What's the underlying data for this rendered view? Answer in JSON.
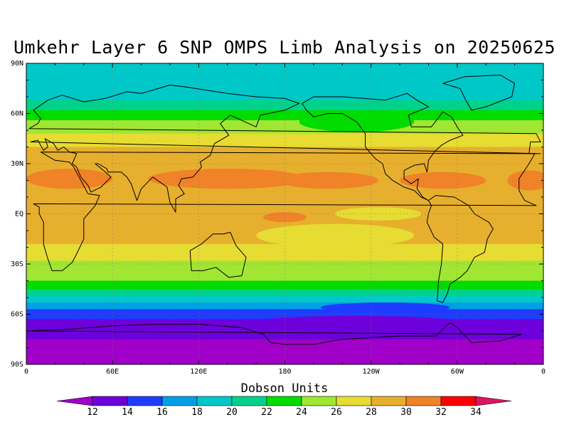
{
  "title": "Umkehr Layer 6 SNP OMPS Limb Analysis on 20250625",
  "colorbar": {
    "title": "Dobson Units",
    "labels": [
      "12",
      "14",
      "16",
      "18",
      "20",
      "22",
      "24",
      "26",
      "28",
      "30",
      "32",
      "34"
    ],
    "colors": [
      "#a000c8",
      "#6e00dc",
      "#1e3cff",
      "#00a0e6",
      "#00c8c8",
      "#00d28c",
      "#00dc00",
      "#a0e632",
      "#e6dc32",
      "#e6af2d",
      "#f08228",
      "#fa0000",
      "#dc1464"
    ]
  },
  "map": {
    "lat_labels": [
      "90N",
      "60N",
      "30N",
      "EQ",
      "30S",
      "60S",
      "90S"
    ],
    "lon_labels": [
      "0",
      "60E",
      "120E",
      "180",
      "120W",
      "60W",
      "0"
    ],
    "bands": [
      {
        "lat_top": 90,
        "color": "#00c8c8"
      },
      {
        "lat_top": 68,
        "color": "#00d28c"
      },
      {
        "lat_top": 62,
        "color": "#00dc00"
      },
      {
        "lat_top": 56,
        "color": "#a0e632"
      },
      {
        "lat_top": 48,
        "color": "#e6dc32"
      },
      {
        "lat_top": 40,
        "color": "#e6af2d"
      },
      {
        "lat_top": -18,
        "color": "#e6dc32"
      },
      {
        "lat_top": -28,
        "color": "#a0e632"
      },
      {
        "lat_top": -40,
        "color": "#00dc00"
      },
      {
        "lat_top": -45,
        "color": "#00d28c"
      },
      {
        "lat_top": -49,
        "color": "#00c8c8"
      },
      {
        "lat_top": -53,
        "color": "#00a0e6"
      },
      {
        "lat_top": -57,
        "color": "#1e3cff"
      },
      {
        "lat_top": -63,
        "color": "#6e00dc"
      },
      {
        "lat_top": -75,
        "color": "#a000c8"
      }
    ],
    "blobs": [
      {
        "name": "orange-band-west",
        "color": "#f08228",
        "lon": 30,
        "lat": 21,
        "rx": 30,
        "ry": 6
      },
      {
        "name": "orange-band-asia",
        "color": "#f08228",
        "lon": 140,
        "lat": 21,
        "rx": 55,
        "ry": 6
      },
      {
        "name": "orange-band-pacific",
        "color": "#f08228",
        "lon": 210,
        "lat": 20,
        "rx": 35,
        "ry": 5
      },
      {
        "name": "orange-band-atlantic",
        "color": "#f08228",
        "lon": 290,
        "lat": 20,
        "rx": 30,
        "ry": 5
      },
      {
        "name": "orange-band-east",
        "color": "#f08228",
        "lon": 350,
        "lat": 20,
        "rx": 15,
        "ry": 6
      },
      {
        "name": "orange-blob-coral-sea",
        "color": "#f08228",
        "lon": 180,
        "lat": -2,
        "rx": 15,
        "ry": 3
      },
      {
        "name": "yellow-blob-eq-pacific",
        "color": "#e6dc32",
        "lon": 245,
        "lat": 0,
        "rx": 30,
        "ry": 4
      },
      {
        "name": "yellow-blob-south-pacific",
        "color": "#e6dc32",
        "lon": 215,
        "lat": -13,
        "rx": 55,
        "ry": 7
      },
      {
        "name": "green-blob-north-pacific",
        "color": "#00dc00",
        "lon": 230,
        "lat": 55,
        "rx": 40,
        "ry": 6
      },
      {
        "name": "blue-tongue-south-pacific",
        "color": "#1e3cff",
        "lon": 250,
        "lat": -56,
        "rx": 45,
        "ry": 3
      },
      {
        "name": "purple-antarctic-bulge",
        "color": "#6e00dc",
        "lon": 230,
        "lat": -66,
        "rx": 80,
        "ry": 5
      }
    ],
    "coastlines": [
      {
        "name": "north-america-outline",
        "points": [
          [
            -168,
            66
          ],
          [
            -160,
            70
          ],
          [
            -140,
            70
          ],
          [
            -125,
            69
          ],
          [
            -110,
            68
          ],
          [
            -95,
            72
          ],
          [
            -88,
            68
          ],
          [
            -80,
            64
          ],
          [
            -94,
            59
          ],
          [
            -92,
            52
          ],
          [
            -78,
            52
          ],
          [
            -70,
            61
          ],
          [
            -64,
            58
          ],
          [
            -60,
            52
          ],
          [
            -56,
            47
          ],
          [
            -65,
            44
          ],
          [
            -71,
            41
          ],
          [
            -76,
            37
          ],
          [
            -80,
            32
          ],
          [
            -81,
            25
          ],
          [
            -83,
            30
          ],
          [
            -90,
            29
          ],
          [
            -97,
            26
          ],
          [
            -97,
            21
          ],
          [
            -92,
            18
          ],
          [
            -87,
            21
          ],
          [
            -88,
            15
          ],
          [
            -84,
            10
          ],
          [
            -80,
            8
          ],
          [
            -85,
            10
          ],
          [
            -90,
            14
          ],
          [
            -97,
            16
          ],
          [
            -105,
            20
          ],
          [
            -110,
            24
          ],
          [
            -112,
            30
          ],
          [
            -117,
            33
          ],
          [
            -124,
            40
          ],
          [
            -124,
            48
          ],
          [
            -130,
            55
          ],
          [
            -140,
            60
          ],
          [
            -150,
            60
          ],
          [
            -160,
            58
          ],
          [
            -165,
            62
          ],
          [
            -168,
            66
          ]
        ]
      },
      {
        "name": "greenland-outline",
        "points": [
          [
            -55,
            82
          ],
          [
            -30,
            83
          ],
          [
            -20,
            78
          ],
          [
            -22,
            70
          ],
          [
            -40,
            64
          ],
          [
            -50,
            62
          ],
          [
            -54,
            68
          ],
          [
            -58,
            75
          ],
          [
            -70,
            78
          ],
          [
            -55,
            82
          ]
        ]
      },
      {
        "name": "south-america-outline",
        "points": [
          [
            -80,
            8
          ],
          [
            -75,
            11
          ],
          [
            -62,
            10
          ],
          [
            -52,
            5
          ],
          [
            -48,
            0
          ],
          [
            -38,
            -5
          ],
          [
            -35,
            -9
          ],
          [
            -39,
            -15
          ],
          [
            -41,
            -23
          ],
          [
            -48,
            -26
          ],
          [
            -53,
            -34
          ],
          [
            -58,
            -38
          ],
          [
            -65,
            -42
          ],
          [
            -67,
            -48
          ],
          [
            -70,
            -53
          ],
          [
            -74,
            -52
          ],
          [
            -73,
            -40
          ],
          [
            -71,
            -30
          ],
          [
            -70,
            -18
          ],
          [
            -76,
            -14
          ],
          [
            -81,
            -5
          ],
          [
            -80,
            0
          ],
          [
            -78,
            5
          ],
          [
            -80,
            8
          ]
        ]
      },
      {
        "name": "africa-outline",
        "points": [
          [
            -17,
            21
          ],
          [
            -10,
            30
          ],
          [
            -6,
            36
          ],
          [
            10,
            37
          ],
          [
            20,
            32
          ],
          [
            30,
            31
          ],
          [
            33,
            28
          ],
          [
            43,
            12
          ],
          [
            51,
            11
          ],
          [
            48,
            5
          ],
          [
            40,
            -3
          ],
          [
            40,
            -15
          ],
          [
            35,
            -24
          ],
          [
            32,
            -29
          ],
          [
            25,
            -34
          ],
          [
            18,
            -34
          ],
          [
            15,
            -27
          ],
          [
            12,
            -18
          ],
          [
            12,
            -5
          ],
          [
            9,
            0
          ],
          [
            9,
            4
          ],
          [
            5,
            6
          ],
          [
            -5,
            5
          ],
          [
            -13,
            8
          ],
          [
            -17,
            14
          ],
          [
            -17,
            21
          ]
        ]
      },
      {
        "name": "eurasia-outline",
        "points": [
          [
            -10,
            36
          ],
          [
            -9,
            43
          ],
          [
            -2,
            43
          ],
          [
            -5,
            48
          ],
          [
            2,
            51
          ],
          [
            8,
            54
          ],
          [
            10,
            57
          ],
          [
            5,
            62
          ],
          [
            15,
            68
          ],
          [
            25,
            71
          ],
          [
            40,
            67
          ],
          [
            55,
            69
          ],
          [
            70,
            73
          ],
          [
            80,
            72
          ],
          [
            100,
            77
          ],
          [
            110,
            76
          ],
          [
            140,
            72
          ],
          [
            160,
            70
          ],
          [
            180,
            69
          ],
          [
            190,
            66
          ],
          [
            180,
            62
          ],
          [
            163,
            59
          ],
          [
            160,
            52
          ],
          [
            142,
            59
          ],
          [
            135,
            54
          ],
          [
            141,
            47
          ],
          [
            131,
            42
          ],
          [
            128,
            35
          ],
          [
            121,
            31
          ],
          [
            122,
            28
          ],
          [
            116,
            22
          ],
          [
            108,
            21
          ],
          [
            106,
            17
          ],
          [
            110,
            12
          ],
          [
            104,
            9
          ],
          [
            104,
            1
          ],
          [
            100,
            7
          ],
          [
            98,
            16
          ],
          [
            93,
            19
          ],
          [
            88,
            22
          ],
          [
            80,
            15
          ],
          [
            77,
            8
          ],
          [
            73,
            18
          ],
          [
            70,
            22
          ],
          [
            66,
            25
          ],
          [
            57,
            25
          ],
          [
            56,
            27
          ],
          [
            50,
            30
          ],
          [
            48,
            30
          ],
          [
            55,
            25
          ],
          [
            59,
            22
          ],
          [
            52,
            16
          ],
          [
            45,
            13
          ],
          [
            43,
            17
          ],
          [
            38,
            22
          ],
          [
            35,
            28
          ],
          [
            32,
            30
          ],
          [
            35,
            36
          ],
          [
            30,
            37
          ],
          [
            26,
            40
          ],
          [
            22,
            38
          ],
          [
            19,
            42
          ],
          [
            13,
            45
          ],
          [
            15,
            40
          ],
          [
            12,
            38
          ],
          [
            8,
            44
          ],
          [
            3,
            43
          ],
          [
            -2,
            36
          ],
          [
            -10,
            36
          ]
        ]
      },
      {
        "name": "australia-outline",
        "points": [
          [
            114,
            -22
          ],
          [
            122,
            -18
          ],
          [
            130,
            -12
          ],
          [
            137,
            -12
          ],
          [
            142,
            -11
          ],
          [
            146,
            -19
          ],
          [
            153,
            -26
          ],
          [
            150,
            -37
          ],
          [
            141,
            -38
          ],
          [
            132,
            -32
          ],
          [
            123,
            -34
          ],
          [
            115,
            -34
          ],
          [
            114,
            -22
          ]
        ]
      },
      {
        "name": "antarctica-outline",
        "points": [
          [
            0,
            -70
          ],
          [
            30,
            -69
          ],
          [
            60,
            -67
          ],
          [
            90,
            -66
          ],
          [
            120,
            -66
          ],
          [
            150,
            -68
          ],
          [
            165,
            -72
          ],
          [
            170,
            -77
          ],
          [
            180,
            -78
          ],
          [
            200,
            -78
          ],
          [
            220,
            -75
          ],
          [
            240,
            -74
          ],
          [
            260,
            -73
          ],
          [
            285,
            -73
          ],
          [
            295,
            -65
          ],
          [
            300,
            -68
          ],
          [
            310,
            -77
          ],
          [
            330,
            -76
          ],
          [
            345,
            -72
          ],
          [
            360,
            -70
          ]
        ]
      }
    ]
  }
}
